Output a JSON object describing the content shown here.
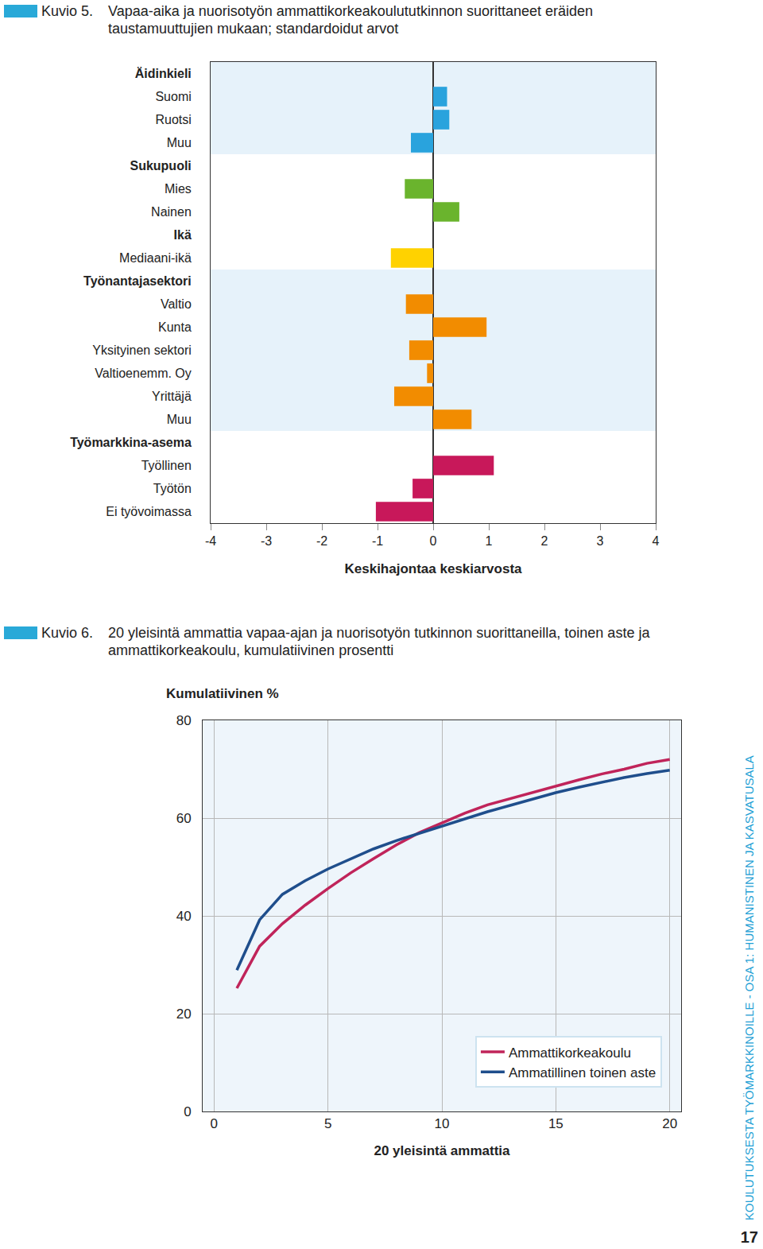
{
  "page": {
    "side_text": "KOULUTUKSESTA TYÖMARKKINOILLE - OSA 1: HUMANISTINEN JA KASVATUSALA",
    "page_number": 17
  },
  "chart_data": [
    {
      "type": "bar",
      "label": "Kuvio 5.",
      "title": "Vapaa-aika ja nuorisotyön ammattikorkeakoulututkinnon suorittaneet eräiden taustamuuttujien mukaan; standardoidut arvot",
      "orientation": "horizontal",
      "categories": [
        "Äidinkieli",
        "Suomi",
        "Ruotsi",
        "Muu",
        "Sukupuoli",
        "Mies",
        "Nainen",
        "Ikä",
        "Mediaani-ikä",
        "Työnantajasektori",
        "Valtio",
        "Kunta",
        "Yksityinen sektori",
        "Valtioenemm. Oy",
        "Yrittäjä",
        "Muu",
        "Työmarkkina-asema",
        "Työllinen",
        "Työtön",
        "Ei työvoimassa"
      ],
      "values": [
        null,
        0.25,
        0.29,
        -0.4,
        null,
        -0.51,
        0.47,
        null,
        -0.76,
        null,
        -0.49,
        0.96,
        -0.43,
        -0.11,
        -0.7,
        0.69,
        null,
        1.09,
        -0.37,
        -1.03
      ],
      "colors": [
        null,
        "#29a3dd",
        "#29a3dd",
        "#29a3dd",
        null,
        "#6ab42d",
        "#6ab42d",
        null,
        "#ffd200",
        null,
        "#f28c00",
        "#f28c00",
        "#f28c00",
        "#f28c00",
        "#f28c00",
        "#f28c00",
        null,
        "#c8185a",
        "#c8185a",
        "#c8185a"
      ],
      "xlim": [
        -4,
        4
      ],
      "xticks": [
        -4,
        -3,
        -2,
        -1,
        0,
        1,
        2,
        3,
        4
      ],
      "xlabel": "Keskihajontaa keskiarvosta",
      "grid": false
    },
    {
      "type": "line",
      "label": "Kuvio 6.",
      "title": "20 yleisintä ammattia vapaa-ajan ja nuorisotyön tutkinnon suorittaneilla, toinen aste ja ammattikorkeakoulu, kumulatiivinen prosentti",
      "x": [
        1,
        2,
        3,
        4,
        5,
        6,
        7,
        8,
        9,
        10,
        11,
        12,
        13,
        14,
        15,
        16,
        17,
        18,
        19,
        20
      ],
      "series": [
        {
          "name": "Ammattikorkeakoulu",
          "color": "#c0245a",
          "values": [
            25.2,
            33.8,
            38.4,
            42.2,
            45.6,
            48.8,
            51.7,
            54.5,
            57.0,
            59.0,
            61.0,
            62.7,
            64.0,
            65.3,
            66.6,
            67.8,
            69.0,
            70.0,
            71.2,
            72.0
          ]
        },
        {
          "name": "Ammatillinen toinen aste",
          "color": "#1f4e8c",
          "values": [
            28.9,
            39.2,
            44.4,
            47.2,
            49.6,
            51.7,
            53.7,
            55.4,
            56.9,
            58.4,
            59.8,
            61.3,
            62.6,
            63.9,
            65.2,
            66.3,
            67.3,
            68.3,
            69.1,
            69.8
          ]
        }
      ],
      "xlim": [
        -0.5,
        20.5
      ],
      "xticks": [
        0,
        5,
        10,
        15,
        20
      ],
      "ylim": [
        0,
        80
      ],
      "yticks": [
        0,
        20,
        40,
        60,
        80
      ],
      "xlabel": "20 yleisintä ammattia",
      "ylabel": "Kumulatiivinen %",
      "grid": true,
      "legend": "lower right"
    }
  ]
}
